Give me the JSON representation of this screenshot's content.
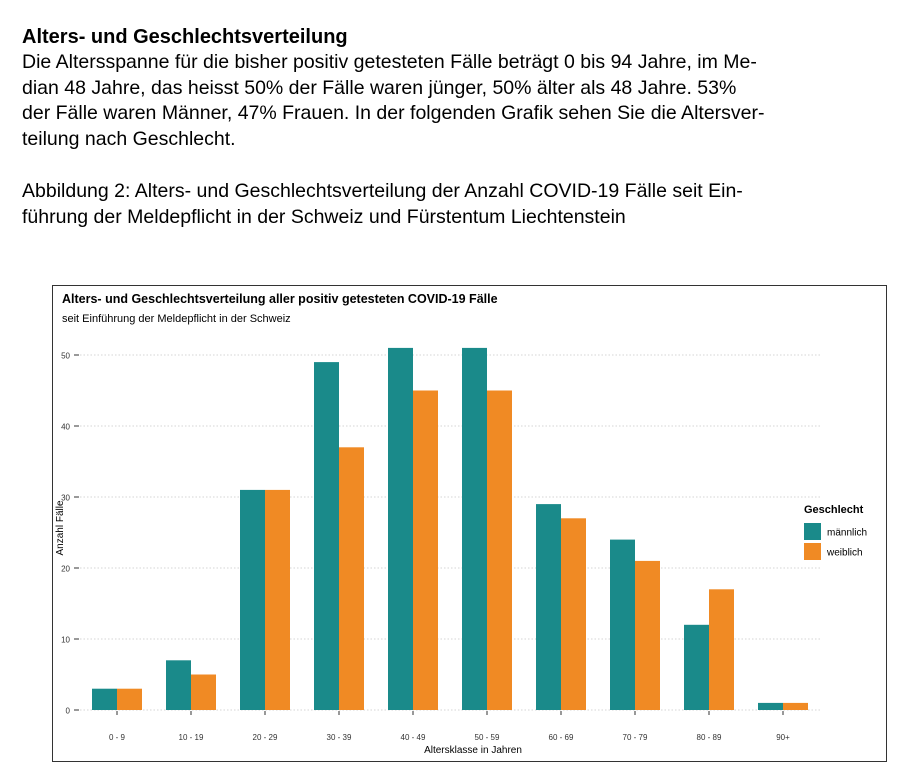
{
  "document": {
    "heading": "Alters- und Geschlechtsverteilung",
    "paragraph_lines": [
      "Die Altersspanne für die bisher positiv getesteten Fälle beträgt 0 bis 94 Jahre, im Me-",
      "dian 48 Jahre, das heisst 50% der Fälle waren jünger, 50% älter als 48 Jahre. 53%",
      "der Fälle waren Männer, 47% Frauen. In der folgenden Grafik sehen Sie die Altersver-",
      "teilung nach Geschlecht."
    ],
    "caption_lines": [
      "Abbildung 2: Alters- und Geschlechtsverteilung der Anzahl COVID-19 Fälle seit Ein-",
      "führung der Meldepflicht in der Schweiz und Fürstentum Liechtenstein"
    ]
  },
  "chart_data": {
    "type": "bar",
    "title": "Alters- und Geschlechtsverteilung aller positiv getesteten COVID-19 Fälle",
    "subtitle": "seit Einführung der Meldepflicht in der Schweiz",
    "xlabel": "Altersklasse in Jahren",
    "ylabel": "Anzahl Fälle",
    "ylim": [
      0,
      55
    ],
    "yticks": [
      0,
      10,
      20,
      30,
      40,
      50
    ],
    "grid": true,
    "legend": {
      "title": "Geschlecht",
      "position": "right"
    },
    "categories": [
      "0 - 9",
      "10 - 19",
      "20 - 29",
      "30 - 39",
      "40 - 49",
      "50 - 59",
      "60 - 69",
      "70 - 79",
      "80 - 89",
      "90+"
    ],
    "series": [
      {
        "name": "männlich",
        "color": "#1a8a8a",
        "values": [
          3,
          7,
          31,
          49,
          51,
          51,
          29,
          24,
          12,
          1
        ]
      },
      {
        "name": "weiblich",
        "color": "#f08a24",
        "values": [
          3,
          5,
          31,
          37,
          45,
          45,
          27,
          21,
          17,
          1
        ]
      }
    ]
  }
}
